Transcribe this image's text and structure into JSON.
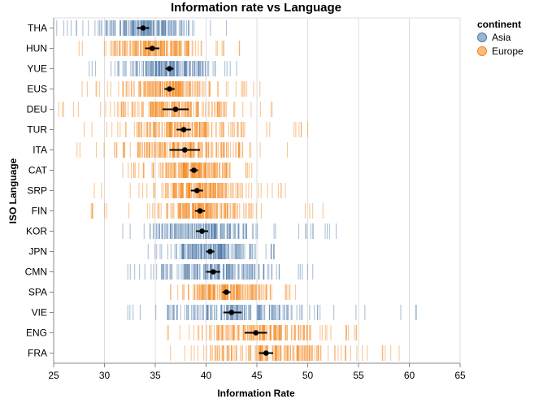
{
  "chart_data": {
    "type": "strip",
    "title": "Information rate vs Language",
    "xlabel": "Information Rate",
    "ylabel": "ISO Language",
    "xlim": [
      25,
      65
    ],
    "x_ticks": [
      "25",
      "30",
      "35",
      "40",
      "45",
      "50",
      "55",
      "60",
      "65"
    ],
    "grid": true,
    "legend": {
      "title": "continent",
      "position": "top-right",
      "items": [
        {
          "label": "Asia",
          "color": "#4c78a8"
        },
        {
          "label": "Europe",
          "color": "#f58518"
        }
      ]
    },
    "languages": [
      {
        "code": "THA",
        "continent": "Asia",
        "mean": 33.8,
        "ci": [
          33.2,
          34.4
        ],
        "range": [
          25.3,
          42.0
        ],
        "core": [
          28.5,
          39.5
        ]
      },
      {
        "code": "HUN",
        "continent": "Europe",
        "mean": 34.7,
        "ci": [
          34.0,
          35.4
        ],
        "range": [
          27.5,
          43.3
        ],
        "core": [
          30.5,
          40.5
        ]
      },
      {
        "code": "YUE",
        "continent": "Asia",
        "mean": 36.4,
        "ci": [
          36.0,
          36.8
        ],
        "range": [
          28.5,
          43.0
        ],
        "core": [
          31.5,
          41.0
        ]
      },
      {
        "code": "EUS",
        "continent": "Europe",
        "mean": 36.4,
        "ci": [
          35.9,
          36.9
        ],
        "range": [
          27.8,
          45.3
        ],
        "core": [
          31.0,
          41.5
        ]
      },
      {
        "code": "DEU",
        "continent": "Europe",
        "mean": 37.0,
        "ci": [
          35.7,
          38.3
        ],
        "range": [
          25.5,
          46.5
        ],
        "core": [
          30.5,
          43.0
        ]
      },
      {
        "code": "TUR",
        "continent": "Europe",
        "mean": 37.8,
        "ci": [
          37.1,
          38.5
        ],
        "range": [
          28.0,
          50.0
        ],
        "core": [
          31.5,
          44.5
        ]
      },
      {
        "code": "ITA",
        "continent": "Europe",
        "mean": 37.9,
        "ci": [
          36.4,
          39.4
        ],
        "range": [
          27.3,
          48.0
        ],
        "core": [
          30.0,
          45.0
        ]
      },
      {
        "code": "CAT",
        "continent": "Europe",
        "mean": 38.8,
        "ci": [
          38.4,
          39.2
        ],
        "range": [
          31.8,
          44.5
        ],
        "core": [
          34.5,
          43.0
        ]
      },
      {
        "code": "SRP",
        "continent": "Europe",
        "mean": 39.1,
        "ci": [
          38.5,
          39.7
        ],
        "range": [
          29.0,
          47.8
        ],
        "core": [
          33.5,
          44.0
        ]
      },
      {
        "code": "FIN",
        "continent": "Europe",
        "mean": 39.4,
        "ci": [
          38.9,
          39.9
        ],
        "range": [
          28.7,
          51.5
        ],
        "core": [
          33.5,
          45.0
        ]
      },
      {
        "code": "KOR",
        "continent": "Asia",
        "mean": 39.6,
        "ci": [
          39.0,
          40.2
        ],
        "range": [
          31.8,
          52.8
        ],
        "core": [
          33.5,
          46.0
        ]
      },
      {
        "code": "JPN",
        "continent": "Asia",
        "mean": 40.4,
        "ci": [
          40.0,
          40.8
        ],
        "range": [
          34.3,
          46.7
        ],
        "core": [
          36.0,
          45.5
        ]
      },
      {
        "code": "CMN",
        "continent": "Asia",
        "mean": 40.7,
        "ci": [
          40.0,
          41.4
        ],
        "range": [
          32.3,
          50.5
        ],
        "core": [
          34.0,
          48.0
        ]
      },
      {
        "code": "SPA",
        "continent": "Europe",
        "mean": 42.0,
        "ci": [
          41.6,
          42.4
        ],
        "range": [
          36.5,
          48.8
        ],
        "core": [
          37.5,
          47.0
        ]
      },
      {
        "code": "VIE",
        "continent": "Asia",
        "mean": 42.5,
        "ci": [
          41.7,
          43.5
        ],
        "range": [
          32.3,
          60.7
        ],
        "core": [
          35.0,
          52.0
        ]
      },
      {
        "code": "ENG",
        "continent": "Europe",
        "mean": 44.9,
        "ci": [
          43.8,
          46.0
        ],
        "range": [
          36.2,
          54.8
        ],
        "core": [
          38.5,
          53.0
        ]
      },
      {
        "code": "FRA",
        "continent": "Europe",
        "mean": 45.9,
        "ci": [
          45.2,
          46.6
        ],
        "range": [
          36.5,
          59.0
        ],
        "core": [
          39.0,
          55.5
        ]
      }
    ]
  }
}
